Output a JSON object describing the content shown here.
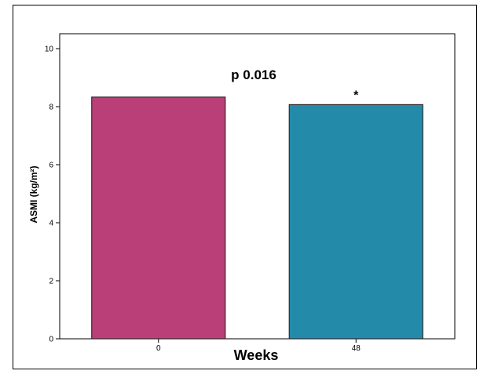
{
  "chart_data": {
    "type": "bar",
    "categories": [
      "0",
      "48"
    ],
    "values": [
      8.33,
      8.07
    ],
    "xlabel": "Weeks",
    "ylabel": "ASMI (kg/m²)",
    "ylim": [
      0,
      10
    ],
    "yticks": [
      "0",
      "2",
      "4",
      "6",
      "8",
      "10"
    ],
    "annotation": "p 0.016",
    "significance_marker": "*",
    "significance_index": 1,
    "bar_colors": [
      "#BA3F79",
      "#248AAA"
    ],
    "edge_color": "#2b2b2b",
    "grid": false,
    "legend": "none"
  }
}
